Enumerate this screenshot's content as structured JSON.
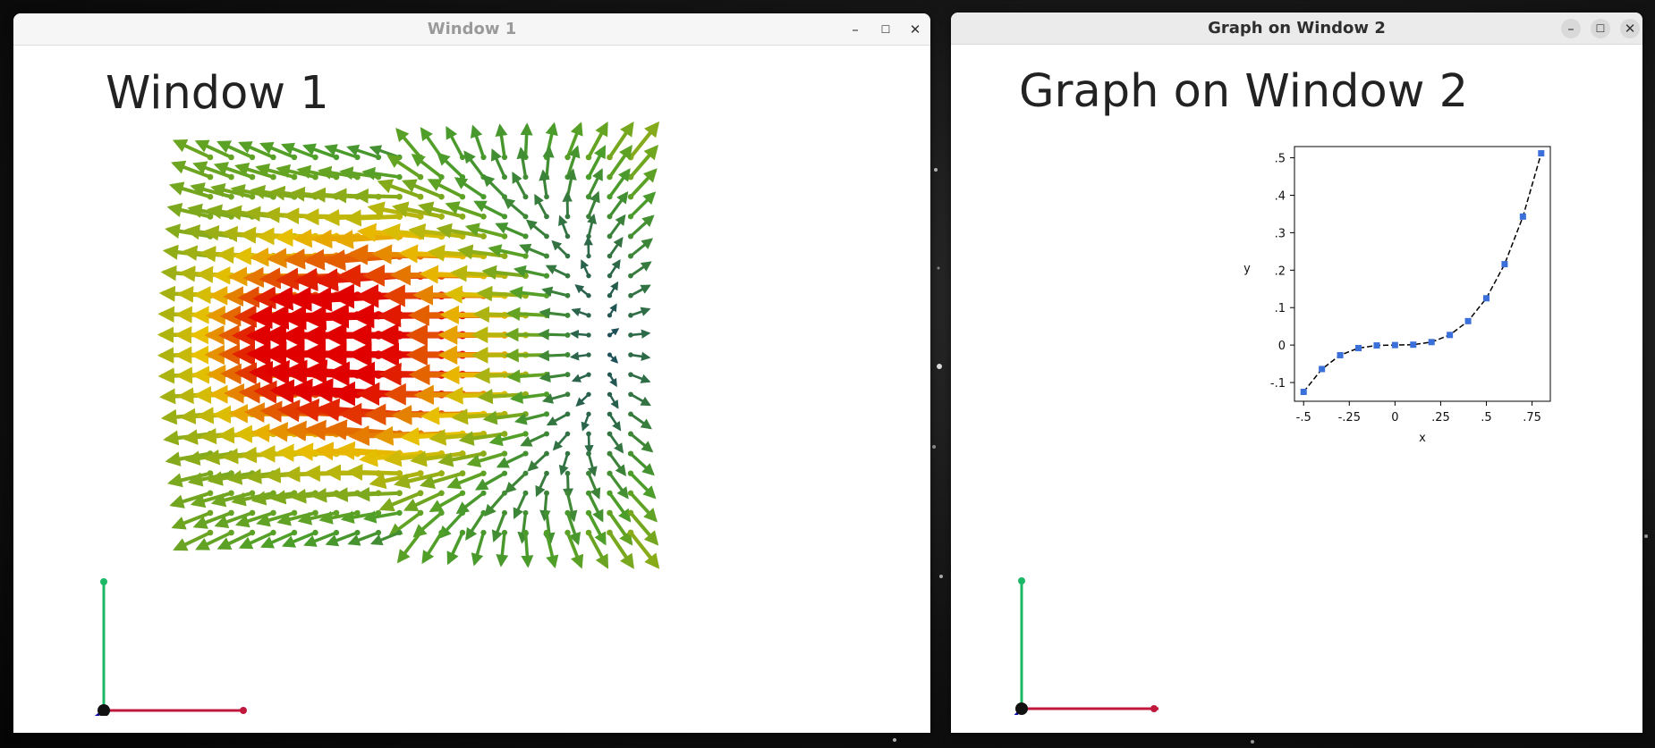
{
  "window1": {
    "title": "Window 1",
    "heading": "Window 1",
    "controls": {
      "minimize": "–",
      "maximize": "☐",
      "close": "✕"
    }
  },
  "window2": {
    "title": "Graph on Window 2",
    "heading": "Graph on Window 2",
    "controls": {
      "minimize": "–",
      "maximize": "☐",
      "close": "✕"
    }
  },
  "colors": {
    "axis_x": "#c0183c",
    "axis_y": "#1db866",
    "axis_z": "#0a0aa8",
    "marker": "#3b6fd9",
    "arrow_weak": "#1a4a5a",
    "arrow_mid": "#4c9e2a",
    "arrow_strong": "#e8c000",
    "arrow_max": "#e00000"
  },
  "icons": {
    "axes_gizmo": "xyz-axes-icon",
    "vector_field": "vector-field-icon"
  },
  "chart_data": {
    "type": "scatter",
    "title": "",
    "xlabel": "x",
    "ylabel": "y",
    "xlim": [
      -0.55,
      0.85
    ],
    "ylim": [
      -0.15,
      0.53
    ],
    "xticks": [
      -0.5,
      -0.25,
      0,
      0.25,
      0.5,
      0.75
    ],
    "xtick_labels": [
      "-.5",
      "-.25",
      "0",
      ".25",
      ".5",
      ".75"
    ],
    "yticks": [
      -0.1,
      0,
      0.1,
      0.2,
      0.3,
      0.4,
      0.5
    ],
    "ytick_labels": [
      "-.1",
      "0",
      ".1",
      ".2",
      ".3",
      ".4",
      ".5"
    ],
    "series": [
      {
        "x": [
          -0.5,
          -0.4,
          -0.3,
          -0.2,
          -0.1,
          0,
          0.1,
          0.2,
          0.3,
          0.4,
          0.5,
          0.6,
          0.7,
          0.8
        ],
        "y": [
          -0.125,
          -0.064,
          -0.027,
          -0.008,
          -0.001,
          0,
          0.001,
          0.008,
          0.027,
          0.064,
          0.125,
          0.216,
          0.343,
          0.512
        ]
      }
    ],
    "line_style": "dashed",
    "grid": false
  }
}
